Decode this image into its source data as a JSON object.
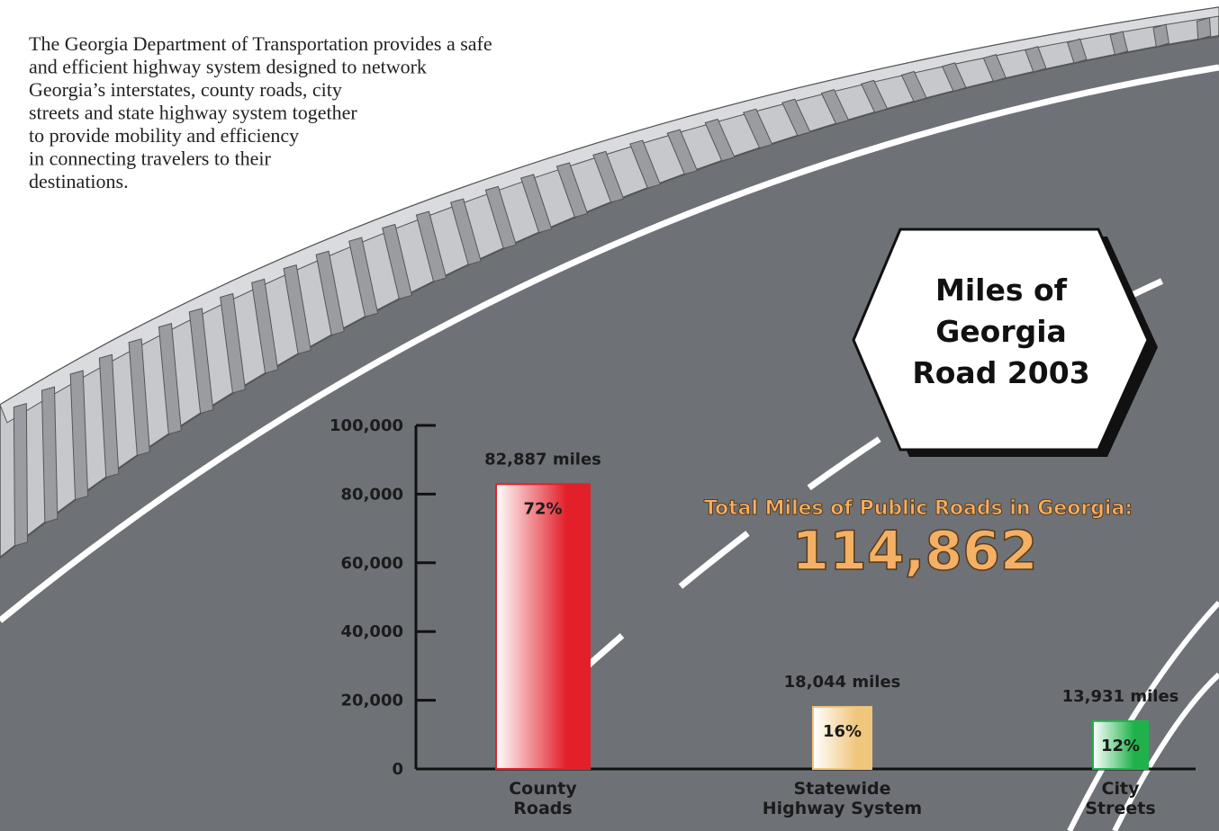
{
  "intro_lines": [
    "The Georgia Department of Transportation provides a safe",
    "and efficient highway system designed to network",
    "Georgia’s interstates, county roads, city",
    "streets and state highway system together",
    "to provide mobility and efficiency",
    "in connecting travelers to their",
    "destinations."
  ],
  "chart_data": {
    "type": "bar",
    "title": "Miles of Georgia Road 2003",
    "categories": [
      "County Roads",
      "Statewide Highway System",
      "City Streets"
    ],
    "values": [
      82887,
      18044,
      13931
    ],
    "value_labels": [
      "82,887 miles",
      "18,044 miles",
      "13,931 miles"
    ],
    "share_labels": [
      "72%",
      "16%",
      "12%"
    ],
    "colors": [
      "#e3202a",
      "#f0c57c",
      "#1fb24a"
    ],
    "ylim": [
      0,
      100000
    ],
    "yticks": [
      0,
      {
        "value": 20000,
        "label": "20,000"
      },
      {
        "value": 40000,
        "label": "40,000"
      },
      {
        "value": 60000,
        "label": "60,000"
      },
      {
        "value": 80000,
        "label": "80,000"
      },
      {
        "value": 100000,
        "label": "100,000"
      }
    ],
    "total_label": "Total Miles of Public Roads in Georgia:",
    "total": "114,862"
  }
}
